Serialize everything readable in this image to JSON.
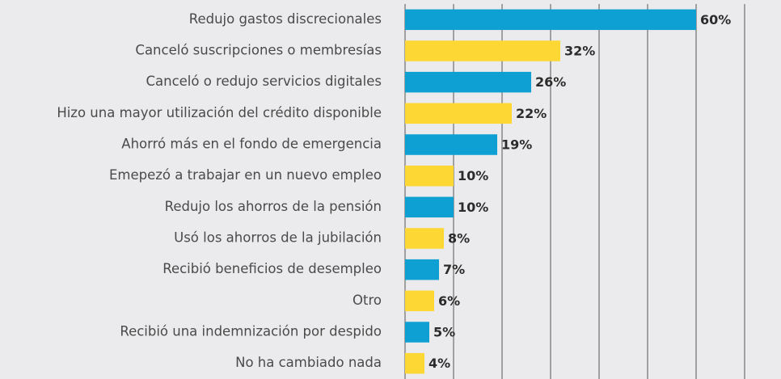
{
  "chart_data": {
    "type": "bar",
    "orientation": "horizontal",
    "categories": [
      "Redujo gastos discrecionales",
      "Canceló suscripciones o membresías",
      "Canceló o redujo servicios digitales",
      "Hizo una mayor utilización del crédito disponible",
      "Ahorró más en el fondo de emergencia",
      "Emepezó a trabajar en un nuevo empleo",
      "Redujo los ahorros de la pensión",
      "Usó los ahorros de la jubilación",
      "Recibió beneficios de desempleo",
      "Otro",
      "Recibió una indemnización por despido",
      "No ha cambiado nada"
    ],
    "values": [
      60,
      32,
      26,
      22,
      19,
      10,
      10,
      8,
      7,
      6,
      5,
      4
    ],
    "value_labels": [
      "60%",
      "32%",
      "26%",
      "22%",
      "19%",
      "10%",
      "10%",
      "8%",
      "7%",
      "6%",
      "5%",
      "4%"
    ],
    "colors": [
      "#0e9fd3",
      "#fdd835"
    ],
    "xlim": [
      0,
      77
    ],
    "xticks": [
      0,
      10,
      20,
      30,
      40,
      50,
      60,
      70
    ],
    "grid": true
  }
}
